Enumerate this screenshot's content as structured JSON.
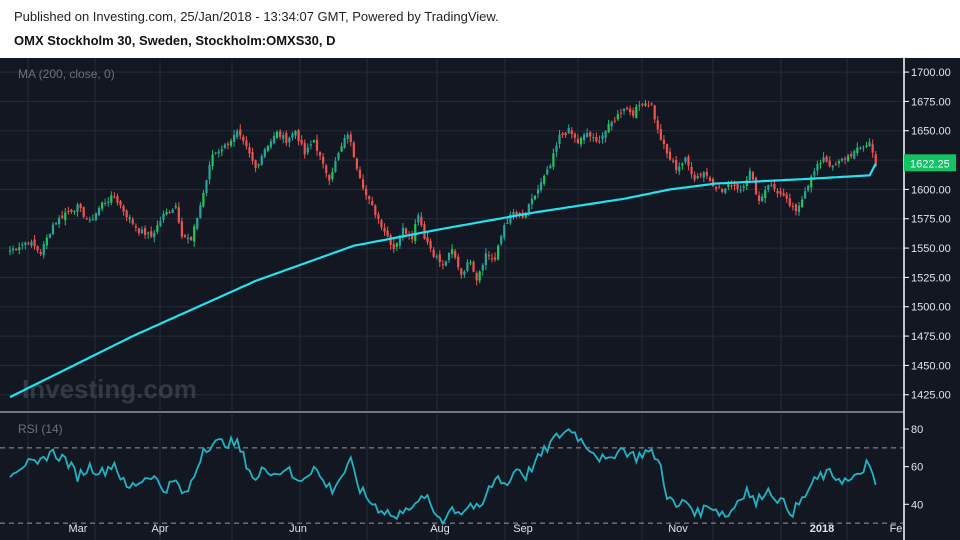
{
  "header": {
    "published": "Published on Investing.com, 25/Jan/2018 - 13:34:07 GMT, Powered by TradingView.",
    "title": "OMX Stockholm 30, Sweden, Stockholm:OMXS30, D"
  },
  "watermark": "Investing.com",
  "colors": {
    "background": "#131722",
    "grid": "#262b3a",
    "up": "#26a69a",
    "up_bright": "#1ec85a",
    "down": "#ef5350",
    "ma": "#22e3f0",
    "rsi": "#1fb4c1",
    "last_price_bg": "#12c265"
  },
  "chart_data": [
    {
      "type": "candlestick",
      "indicator_label": "MA (200, close, 0)",
      "y_ticks": [
        1425,
        1450,
        1475,
        1500,
        1525,
        1550,
        1575,
        1600,
        1625,
        1650,
        1675,
        1700
      ],
      "y_tick_labels": [
        "1425.00",
        "1450.00",
        "1475.00",
        "1500.00",
        "1525.00",
        "1550.00",
        "1575.00",
        "1600.00",
        "1625.00",
        "1650.00",
        "1675.00",
        "1700.00"
      ],
      "ylim": [
        1412,
        1712
      ],
      "last_price": "1622.25",
      "x_labels": [
        "Mar",
        "Apr",
        "Jun",
        "Aug",
        "Sep",
        "Nov",
        "2018",
        "Fe"
      ],
      "close_path": [
        [
          0,
          1548
        ],
        [
          6,
          1556
        ],
        [
          10,
          1546
        ],
        [
          14,
          1570
        ],
        [
          18,
          1580
        ],
        [
          22,
          1585
        ],
        [
          26,
          1572
        ],
        [
          30,
          1588
        ],
        [
          34,
          1594
        ],
        [
          38,
          1578
        ],
        [
          42,
          1565
        ],
        [
          46,
          1560
        ],
        [
          50,
          1578
        ],
        [
          54,
          1586
        ],
        [
          56,
          1562
        ],
        [
          59,
          1556
        ],
        [
          63,
          1597
        ],
        [
          66,
          1630
        ],
        [
          70,
          1637
        ],
        [
          74,
          1648
        ],
        [
          77,
          1635
        ],
        [
          80,
          1618
        ],
        [
          83,
          1635
        ],
        [
          87,
          1648
        ],
        [
          90,
          1642
        ],
        [
          93,
          1650
        ],
        [
          96,
          1630
        ],
        [
          99,
          1642
        ],
        [
          102,
          1620
        ],
        [
          104,
          1610
        ],
        [
          107,
          1630
        ],
        [
          110,
          1648
        ],
        [
          113,
          1620
        ],
        [
          116,
          1595
        ],
        [
          119,
          1580
        ],
        [
          122,
          1565
        ],
        [
          125,
          1550
        ],
        [
          128,
          1566
        ],
        [
          131,
          1560
        ],
        [
          133,
          1580
        ],
        [
          135,
          1560
        ],
        [
          138,
          1545
        ],
        [
          141,
          1535
        ],
        [
          144,
          1548
        ],
        [
          147,
          1528
        ],
        [
          150,
          1540
        ],
        [
          152,
          1524
        ],
        [
          155,
          1545
        ],
        [
          158,
          1540
        ],
        [
          161,
          1570
        ],
        [
          164,
          1580
        ],
        [
          167,
          1575
        ],
        [
          170,
          1590
        ],
        [
          173,
          1605
        ],
        [
          176,
          1620
        ],
        [
          179,
          1645
        ],
        [
          182,
          1650
        ],
        [
          185,
          1640
        ],
        [
          188,
          1648
        ],
        [
          191,
          1640
        ],
        [
          194,
          1650
        ],
        [
          197,
          1660
        ],
        [
          200,
          1670
        ],
        [
          203,
          1665
        ],
        [
          206,
          1675
        ],
        [
          209,
          1672
        ],
        [
          211,
          1650
        ],
        [
          214,
          1630
        ],
        [
          217,
          1618
        ],
        [
          220,
          1625
        ],
        [
          223,
          1610
        ],
        [
          226,
          1615
        ],
        [
          229,
          1605
        ],
        [
          232,
          1598
        ],
        [
          235,
          1605
        ],
        [
          238,
          1600
        ],
        [
          241,
          1615
        ],
        [
          244,
          1590
        ],
        [
          247,
          1605
        ],
        [
          250,
          1598
        ],
        [
          253,
          1590
        ],
        [
          256,
          1580
        ],
        [
          259,
          1600
        ],
        [
          262,
          1615
        ],
        [
          265,
          1628
        ],
        [
          268,
          1618
        ],
        [
          271,
          1625
        ],
        [
          274,
          1630
        ],
        [
          277,
          1635
        ],
        [
          280,
          1640
        ],
        [
          282,
          1622
        ]
      ],
      "ma200_path": [
        [
          0,
          1423
        ],
        [
          40,
          1475
        ],
        [
          80,
          1522
        ],
        [
          112,
          1552
        ],
        [
          140,
          1566
        ],
        [
          170,
          1580
        ],
        [
          200,
          1592
        ],
        [
          215,
          1600
        ],
        [
          230,
          1605
        ],
        [
          260,
          1609
        ],
        [
          280,
          1612
        ],
        [
          282,
          1622
        ]
      ]
    },
    {
      "type": "line",
      "indicator_label": "RSI (14)",
      "y_ticks": [
        40,
        60,
        80
      ],
      "y_tick_labels": [
        "40",
        "60",
        "80"
      ],
      "dashed_levels": [
        30,
        70
      ],
      "ylim": [
        21,
        88
      ],
      "rsi_path": [
        [
          0,
          57
        ],
        [
          5,
          62
        ],
        [
          9,
          60
        ],
        [
          13,
          68
        ],
        [
          18,
          64
        ],
        [
          22,
          55
        ],
        [
          26,
          60
        ],
        [
          30,
          57
        ],
        [
          34,
          62
        ],
        [
          38,
          48
        ],
        [
          42,
          52
        ],
        [
          46,
          56
        ],
        [
          50,
          48
        ],
        [
          54,
          52
        ],
        [
          57,
          44
        ],
        [
          60,
          55
        ],
        [
          63,
          70
        ],
        [
          66,
          72
        ],
        [
          70,
          73
        ],
        [
          74,
          72
        ],
        [
          77,
          62
        ],
        [
          80,
          52
        ],
        [
          83,
          60
        ],
        [
          87,
          56
        ],
        [
          90,
          60
        ],
        [
          93,
          52
        ],
        [
          96,
          55
        ],
        [
          99,
          60
        ],
        [
          102,
          52
        ],
        [
          105,
          48
        ],
        [
          108,
          55
        ],
        [
          111,
          62
        ],
        [
          114,
          48
        ],
        [
          117,
          42
        ],
        [
          120,
          38
        ],
        [
          123,
          36
        ],
        [
          126,
          32
        ],
        [
          129,
          40
        ],
        [
          132,
          38
        ],
        [
          135,
          45
        ],
        [
          138,
          36
        ],
        [
          141,
          32
        ],
        [
          144,
          38
        ],
        [
          147,
          36
        ],
        [
          150,
          40
        ],
        [
          153,
          36
        ],
        [
          156,
          48
        ],
        [
          159,
          55
        ],
        [
          162,
          50
        ],
        [
          165,
          60
        ],
        [
          168,
          55
        ],
        [
          171,
          62
        ],
        [
          174,
          68
        ],
        [
          177,
          74
        ],
        [
          180,
          78
        ],
        [
          183,
          80
        ],
        [
          186,
          74
        ],
        [
          189,
          70
        ],
        [
          192,
          65
        ],
        [
          195,
          62
        ],
        [
          198,
          70
        ],
        [
          201,
          68
        ],
        [
          204,
          65
        ],
        [
          207,
          68
        ],
        [
          210,
          66
        ],
        [
          212,
          60
        ],
        [
          214,
          45
        ],
        [
          217,
          38
        ],
        [
          220,
          42
        ],
        [
          224,
          35
        ],
        [
          228,
          40
        ],
        [
          231,
          36
        ],
        [
          234,
          34
        ],
        [
          237,
          42
        ],
        [
          240,
          48
        ],
        [
          243,
          40
        ],
        [
          246,
          48
        ],
        [
          249,
          45
        ],
        [
          252,
          40
        ],
        [
          255,
          36
        ],
        [
          258,
          42
        ],
        [
          261,
          50
        ],
        [
          264,
          55
        ],
        [
          267,
          56
        ],
        [
          270,
          54
        ],
        [
          273,
          52
        ],
        [
          276,
          54
        ],
        [
          279,
          62
        ],
        [
          282,
          50
        ]
      ]
    }
  ]
}
